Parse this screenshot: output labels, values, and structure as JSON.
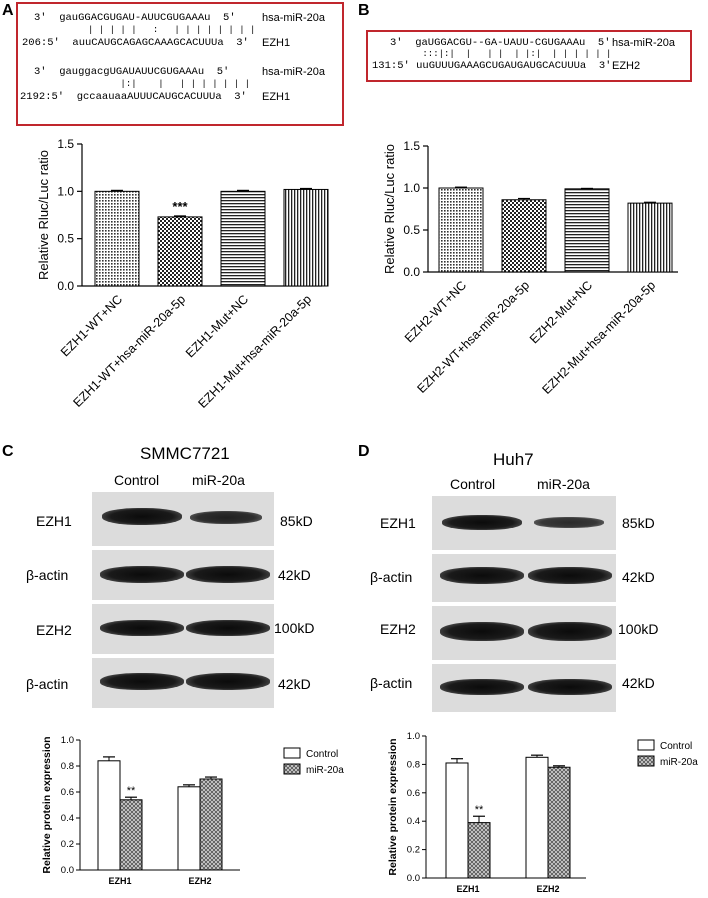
{
  "panels": {
    "a": "A",
    "b": "B",
    "c": "C",
    "d": "D"
  },
  "seq_a": {
    "row1_top": "3'  gauGGACGUGAU-AUUCGUGAAAu  5'",
    "row1_pair": "          | | | | |   :   | | | | | | | |",
    "row1_bottom": "206:5'  auuCAUGCAGAGCAAAGCACUUUa  3'",
    "row1_top_label": "hsa-miR-20a",
    "row1_bottom_label": "EZH1",
    "row2_top": "3'  gauggacgUGAUAUUCGUGAAAu  5'",
    "row2_pair": "                |:|    |   | | | | | | |",
    "row2_bottom": "2192:5'  gccaauaaAUUUCAUGCACUUUa  3'",
    "row2_top_label": "hsa-miR-20a",
    "row2_bottom_label": "EZH1"
  },
  "seq_b": {
    "top": "3'  gaUGGACGU--GA-UAUU-CGUGAAAu  5'",
    "pair": "      :::|:|  |   | |  | |:|  | | | | | |",
    "bottom": "131:5' uuGUUUGAAAGCUGAUGAUGCACUUUa  3'",
    "top_label": "hsa-miR-20a",
    "bottom_label": "EZH2"
  },
  "blot_c": {
    "title": "SMMC7721",
    "col1": "Control",
    "col2": "miR-20a",
    "rows": [
      {
        "label": "EZH1",
        "size": "85kD"
      },
      {
        "label": "β-actin",
        "size": "42kD"
      },
      {
        "label": "EZH2",
        "size": "100kD"
      },
      {
        "label": "β-actin",
        "size": "42kD"
      }
    ]
  },
  "blot_d": {
    "title": "Huh7",
    "col1": "Control",
    "col2": "miR-20a",
    "rows": [
      {
        "label": "EZH1",
        "size": "85kD"
      },
      {
        "label": "β-actin",
        "size": "42kD"
      },
      {
        "label": "EZH2",
        "size": "100kD"
      },
      {
        "label": "β-actin",
        "size": "42kD"
      }
    ]
  },
  "chart_data": [
    {
      "id": "A",
      "type": "bar",
      "ylabel": "Relative Rluc/Luc ratio",
      "ylim": [
        0,
        1.5
      ],
      "yticks": [
        "0.0",
        "0.5",
        "1.0",
        "1.5"
      ],
      "categories": [
        "EZH1-WT+NC",
        "EZH1-WT+hsa-miR-20a-5p",
        "EZH1-Mut+NC",
        "EZH1-Mut+hsa-miR-20a-5p"
      ],
      "values": [
        1.0,
        0.73,
        1.0,
        1.02
      ],
      "errors": [
        0.01,
        0.01,
        0.01,
        0.01
      ],
      "patterns": [
        "dots",
        "check",
        "hlines",
        "vlines"
      ],
      "annotations": [
        "",
        "***",
        "",
        ""
      ]
    },
    {
      "id": "B",
      "type": "bar",
      "ylabel": "Relative Rluc/Luc ratio",
      "ylim": [
        0,
        1.5
      ],
      "yticks": [
        "0.0",
        "0.5",
        "1.0",
        "1.5"
      ],
      "categories": [
        "EZH2-WT+NC",
        "EZH2-WT+hsa-miR-20a-5p",
        "EZH2-Mut+NC",
        "EZH2-Mut+hsa-miR-20a-5p"
      ],
      "values": [
        1.0,
        0.86,
        0.99,
        0.82
      ],
      "errors": [
        0.01,
        0.015,
        0.005,
        0.01
      ],
      "patterns": [
        "dots",
        "check",
        "hlines",
        "vlines"
      ],
      "annotations": [
        "",
        "",
        "",
        ""
      ]
    },
    {
      "id": "C",
      "type": "bar",
      "ylabel": "Relative protein expression",
      "ylim": [
        0,
        1.0
      ],
      "yticks": [
        "0.0",
        "0.2",
        "0.4",
        "0.6",
        "0.8",
        "1.0"
      ],
      "categories": [
        "EZH1",
        "EZH2"
      ],
      "series": [
        {
          "name": "Control",
          "values": [
            0.84,
            0.64
          ],
          "errors": [
            0.03,
            0.015
          ]
        },
        {
          "name": "miR-20a",
          "values": [
            0.54,
            0.7
          ],
          "errors": [
            0.02,
            0.015
          ]
        }
      ],
      "annotations": [
        [
          "",
          ""
        ],
        [
          "**",
          ""
        ]
      ]
    },
    {
      "id": "D",
      "type": "bar",
      "ylabel": "Relative protein expression",
      "ylim": [
        0,
        1.0
      ],
      "yticks": [
        "0.0",
        "0.2",
        "0.4",
        "0.6",
        "0.8",
        "1.0"
      ],
      "categories": [
        "EZH1",
        "EZH2"
      ],
      "series": [
        {
          "name": "Control",
          "values": [
            0.81,
            0.85
          ],
          "errors": [
            0.03,
            0.015
          ]
        },
        {
          "name": "miR-20a",
          "values": [
            0.39,
            0.78
          ],
          "errors": [
            0.045,
            0.01
          ]
        }
      ],
      "annotations": [
        [
          "",
          ""
        ],
        [
          "**",
          ""
        ]
      ]
    }
  ]
}
